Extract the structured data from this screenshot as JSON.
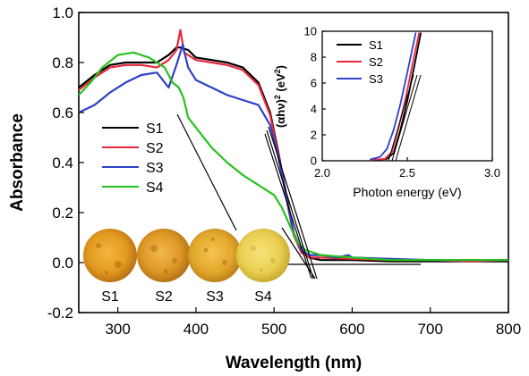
{
  "chart_data": [
    {
      "type": "line",
      "xlabel": "Wavelength (nm)",
      "ylabel": "Absorbance",
      "xlim": [
        250,
        800
      ],
      "ylim": [
        -0.2,
        1.0
      ],
      "xticks": [
        "300",
        "400",
        "500",
        "600",
        "700",
        "800"
      ],
      "yticks": [
        "-0.2",
        "0.0",
        "0.2",
        "0.4",
        "0.6",
        "0.8",
        "1.0"
      ],
      "legend_position": "middle-left",
      "series": [
        {
          "name": "S1",
          "color": "#000000",
          "points": [
            [
              250,
              0.7
            ],
            [
              270,
              0.75
            ],
            [
              290,
              0.79
            ],
            [
              310,
              0.8
            ],
            [
              330,
              0.8
            ],
            [
              350,
              0.8
            ],
            [
              365,
              0.83
            ],
            [
              375,
              0.86
            ],
            [
              380,
              0.86
            ],
            [
              390,
              0.85
            ],
            [
              400,
              0.82
            ],
            [
              420,
              0.81
            ],
            [
              440,
              0.8
            ],
            [
              460,
              0.78
            ],
            [
              480,
              0.72
            ],
            [
              495,
              0.6
            ],
            [
              505,
              0.45
            ],
            [
              515,
              0.28
            ],
            [
              525,
              0.12
            ],
            [
              535,
              0.04
            ],
            [
              545,
              0.02
            ],
            [
              560,
              0.01
            ],
            [
              600,
              0.01
            ],
            [
              650,
              0.005
            ],
            [
              700,
              0.005
            ],
            [
              750,
              0.005
            ],
            [
              800,
              0.005
            ]
          ]
        },
        {
          "name": "S2",
          "color": "#e8263c",
          "points": [
            [
              250,
              0.69
            ],
            [
              270,
              0.74
            ],
            [
              290,
              0.78
            ],
            [
              310,
              0.79
            ],
            [
              330,
              0.79
            ],
            [
              350,
              0.78
            ],
            [
              365,
              0.81
            ],
            [
              375,
              0.85
            ],
            [
              380,
              0.93
            ],
            [
              385,
              0.84
            ],
            [
              400,
              0.81
            ],
            [
              420,
              0.8
            ],
            [
              440,
              0.79
            ],
            [
              460,
              0.77
            ],
            [
              480,
              0.71
            ],
            [
              495,
              0.59
            ],
            [
              505,
              0.44
            ],
            [
              515,
              0.27
            ],
            [
              525,
              0.11
            ],
            [
              535,
              0.04
            ],
            [
              545,
              0.02
            ],
            [
              560,
              0.02
            ],
            [
              600,
              0.015
            ],
            [
              650,
              0.01
            ],
            [
              700,
              0.01
            ],
            [
              750,
              0.005
            ],
            [
              800,
              0.01
            ]
          ]
        },
        {
          "name": "S3",
          "color": "#2f3fc8",
          "points": [
            [
              250,
              0.6
            ],
            [
              270,
              0.63
            ],
            [
              290,
              0.68
            ],
            [
              310,
              0.72
            ],
            [
              330,
              0.75
            ],
            [
              350,
              0.76
            ],
            [
              365,
              0.7
            ],
            [
              375,
              0.79
            ],
            [
              383,
              0.87
            ],
            [
              390,
              0.78
            ],
            [
              400,
              0.73
            ],
            [
              420,
              0.7
            ],
            [
              440,
              0.67
            ],
            [
              460,
              0.65
            ],
            [
              480,
              0.63
            ],
            [
              495,
              0.55
            ],
            [
              505,
              0.43
            ],
            [
              515,
              0.27
            ],
            [
              525,
              0.12
            ],
            [
              535,
              0.05
            ],
            [
              545,
              0.03
            ],
            [
              560,
              0.03
            ],
            [
              580,
              0.02
            ],
            [
              595,
              0.03
            ],
            [
              600,
              0.02
            ],
            [
              650,
              0.015
            ],
            [
              700,
              0.01
            ],
            [
              750,
              0.01
            ],
            [
              800,
              0.01
            ]
          ]
        },
        {
          "name": "S4",
          "color": "#26c21e",
          "points": [
            [
              250,
              0.67
            ],
            [
              265,
              0.72
            ],
            [
              280,
              0.78
            ],
            [
              300,
              0.83
            ],
            [
              320,
              0.84
            ],
            [
              340,
              0.82
            ],
            [
              360,
              0.78
            ],
            [
              370,
              0.72
            ],
            [
              378,
              0.7
            ],
            [
              384,
              0.66
            ],
            [
              390,
              0.58
            ],
            [
              400,
              0.54
            ],
            [
              420,
              0.46
            ],
            [
              440,
              0.4
            ],
            [
              460,
              0.35
            ],
            [
              480,
              0.31
            ],
            [
              500,
              0.27
            ],
            [
              510,
              0.22
            ],
            [
              520,
              0.15
            ],
            [
              530,
              0.08
            ],
            [
              540,
              0.05
            ],
            [
              560,
              0.03
            ],
            [
              600,
              0.02
            ],
            [
              650,
              0.01
            ],
            [
              700,
              0.01
            ],
            [
              750,
              0.01
            ],
            [
              800,
              0.01
            ]
          ]
        }
      ],
      "image_labels": [
        "S1",
        "S2",
        "S3",
        "S4"
      ]
    },
    {
      "type": "line",
      "xlabel": "Photon energy (eV)",
      "ylabel": "(αhν)2 (eV2)",
      "ylabel_parts": {
        "base": "(αhν)",
        "exp1": "2",
        "mid": " (eV",
        "exp2": "2",
        "end": ")"
      },
      "xlim": [
        2.0,
        3.0
      ],
      "ylim": [
        0,
        10
      ],
      "xticks": [
        "2.0",
        "2.5",
        "3.0"
      ],
      "yticks": [
        "0",
        "2",
        "4",
        "6",
        "8",
        "10"
      ],
      "legend_position": "top-left",
      "series": [
        {
          "name": "S1",
          "color": "#000000",
          "points": [
            [
              2.3,
              0.05
            ],
            [
              2.38,
              0.15
            ],
            [
              2.42,
              0.6
            ],
            [
              2.46,
              2.4
            ],
            [
              2.5,
              4.6
            ],
            [
              2.54,
              7.2
            ],
            [
              2.58,
              9.9
            ]
          ]
        },
        {
          "name": "S2",
          "color": "#e8263c",
          "points": [
            [
              2.3,
              0.05
            ],
            [
              2.37,
              0.15
            ],
            [
              2.41,
              0.7
            ],
            [
              2.45,
              2.6
            ],
            [
              2.49,
              4.8
            ],
            [
              2.53,
              7.4
            ],
            [
              2.57,
              9.9
            ]
          ]
        },
        {
          "name": "S3",
          "color": "#2f3fc8",
          "points": [
            [
              2.28,
              0.1
            ],
            [
              2.34,
              0.3
            ],
            [
              2.38,
              0.9
            ],
            [
              2.42,
              2.4
            ],
            [
              2.46,
              4.4
            ],
            [
              2.5,
              6.8
            ],
            [
              2.55,
              9.9
            ]
          ]
        }
      ]
    }
  ]
}
